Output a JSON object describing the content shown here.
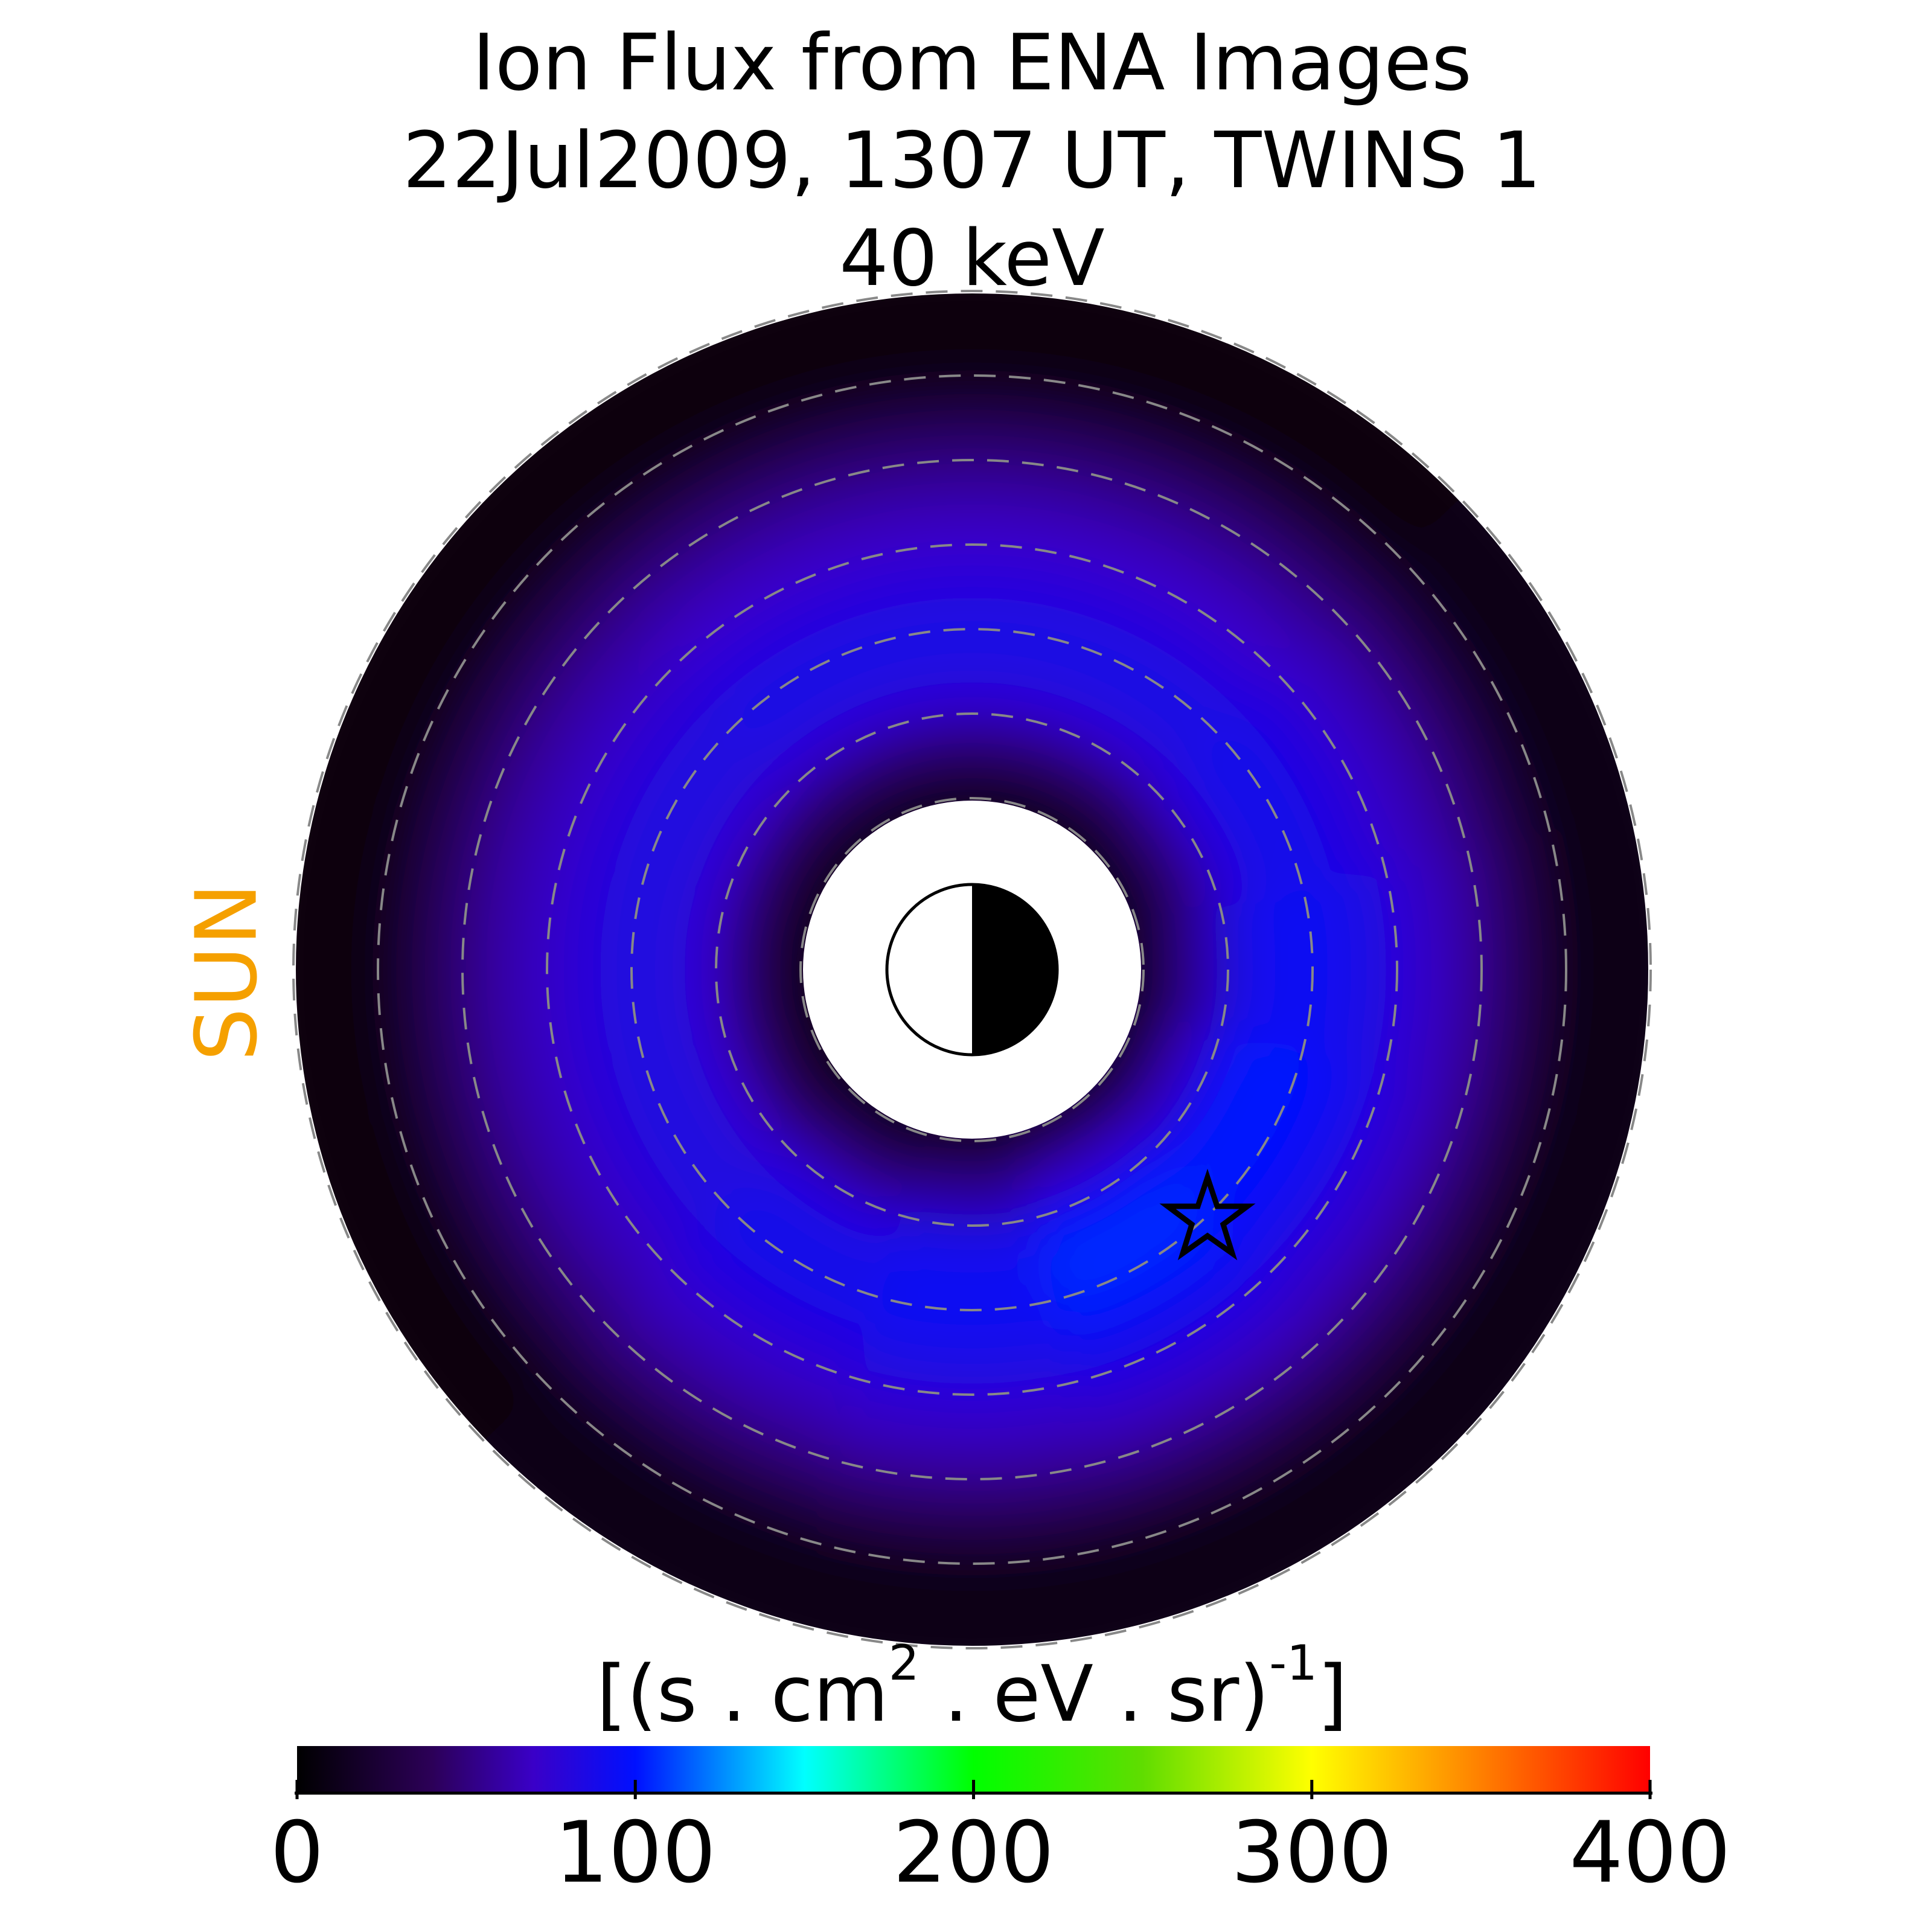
{
  "chart_data": {
    "type": "polar_heatmap",
    "title": [
      "Ion Flux from  ENA Images",
      "22Jul2009, 1307 UT,  TWINS 1",
      "40 keV"
    ],
    "side_label": "SUN",
    "r": [
      2.25,
      2.75,
      3.25,
      3.75,
      4.25,
      4.75,
      5.25,
      5.75,
      6.25,
      6.75,
      7.25,
      7.75
    ],
    "theta": [
      0,
      30,
      60,
      90,
      120,
      150,
      180,
      210,
      240,
      270,
      300,
      330
    ],
    "values": [
      [
        6,
        24,
        56,
        84,
        94,
        93,
        86,
        76,
        65,
        50,
        29,
        8
      ],
      [
        5,
        20,
        50,
        78,
        88,
        88,
        82,
        72,
        62,
        48,
        28,
        8
      ],
      [
        4,
        18,
        46,
        74,
        85,
        85,
        79,
        70,
        60,
        47,
        27,
        7
      ],
      [
        4,
        18,
        46,
        74,
        85,
        85,
        79,
        70,
        60,
        47,
        27,
        7
      ],
      [
        4,
        18,
        46,
        74,
        85,
        85,
        79,
        70,
        60,
        47,
        27,
        7
      ],
      [
        4,
        16,
        44,
        72,
        83,
        83,
        77,
        68,
        59,
        46,
        27,
        7
      ],
      [
        4,
        16,
        44,
        72,
        83,
        83,
        77,
        68,
        59,
        46,
        27,
        7
      ],
      [
        4,
        16,
        44,
        72,
        83,
        83,
        77,
        68,
        59,
        46,
        27,
        7
      ],
      [
        5,
        20,
        50,
        78,
        88,
        88,
        82,
        72,
        62,
        48,
        28,
        8
      ],
      [
        6,
        24,
        56,
        84,
        94,
        93,
        86,
        76,
        65,
        50,
        29,
        8
      ],
      [
        8,
        30,
        68,
        98,
        106,
        102,
        92,
        80,
        67,
        51,
        29,
        8
      ],
      [
        7,
        28,
        64,
        94,
        102,
        99,
        90,
        78,
        66,
        50,
        29,
        8
      ]
    ],
    "rlim": [
      2,
      8
    ],
    "rgrid": [
      2,
      3,
      4,
      5,
      6,
      7,
      8
    ],
    "colorbar": {
      "label": [
        "[(s . cm",
        "2",
        " . eV . sr)",
        "-1",
        "]"
      ],
      "clim": [
        0,
        400
      ],
      "ticks": [
        0,
        100,
        200,
        300,
        400
      ],
      "colormap": [
        {
          "value": 0,
          "color": "#000000"
        },
        {
          "value": 40,
          "color": "#2c0058"
        },
        {
          "value": 70,
          "color": "#3a00c8"
        },
        {
          "value": 100,
          "color": "#0010ff"
        },
        {
          "value": 150,
          "color": "#00ffff"
        },
        {
          "value": 200,
          "color": "#00ff00"
        },
        {
          "value": 250,
          "color": "#60dd00"
        },
        {
          "value": 300,
          "color": "#ffff00"
        },
        {
          "value": 340,
          "color": "#ff9900"
        },
        {
          "value": 400,
          "color": "#ff0000"
        }
      ]
    }
  }
}
